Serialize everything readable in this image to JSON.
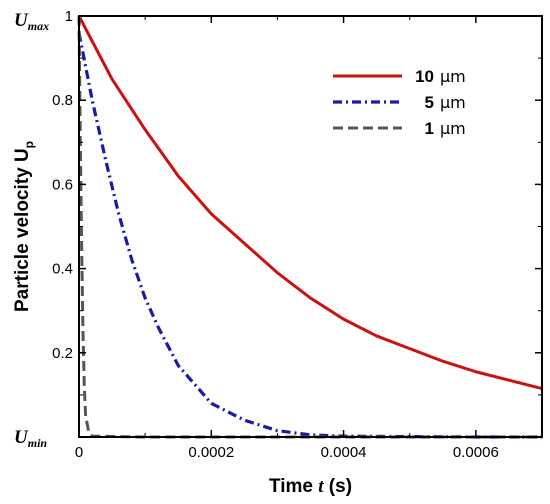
{
  "chart_data": {
    "type": "line",
    "xlabel_prefix": "Time ",
    "xlabel_var": "t",
    "xlabel_suffix": " (s)",
    "ylabel_main": "Particle velocity  U",
    "ylabel_sub": "p",
    "xlim": [
      0,
      0.0007
    ],
    "ylim": [
      0,
      1
    ],
    "x_ticks": [
      "0",
      "0.0002",
      "0.0004",
      "0.0006"
    ],
    "x_tick_values": [
      0,
      0.0002,
      0.0004,
      0.0006
    ],
    "y_ticks": [
      "0.2",
      "0.4",
      "0.6",
      "0.8",
      "1"
    ],
    "y_tick_values": [
      0.2,
      0.4,
      0.6,
      0.8,
      1
    ],
    "y_top_label": {
      "main": "U",
      "sub": "max"
    },
    "y_bottom_label": {
      "main": "U",
      "sub": "min"
    },
    "legend_position": "top-right",
    "series": [
      {
        "name": "10",
        "unit": "μm",
        "color": "#cc1111",
        "style": "solid",
        "x": [
          0,
          5e-05,
          0.0001,
          0.00015,
          0.0002,
          0.00025,
          0.0003,
          0.00035,
          0.0004,
          0.00045,
          0.0005,
          0.00055,
          0.0006,
          0.00065,
          0.0007
        ],
        "y": [
          1.0,
          0.85,
          0.73,
          0.62,
          0.53,
          0.46,
          0.39,
          0.33,
          0.28,
          0.24,
          0.21,
          0.18,
          0.155,
          0.135,
          0.115
        ]
      },
      {
        "name": "5",
        "unit": "μm",
        "color": "#1a1aa6",
        "style": "dashdot",
        "x": [
          0,
          1e-05,
          2e-05,
          4e-05,
          6e-05,
          8e-05,
          0.0001,
          0.00012,
          0.00015,
          0.0002,
          0.00025,
          0.0003,
          0.00035,
          0.0004,
          0.0005,
          0.0006,
          0.0007
        ],
        "y": [
          0.96,
          0.88,
          0.8,
          0.66,
          0.53,
          0.42,
          0.33,
          0.26,
          0.17,
          0.08,
          0.04,
          0.015,
          0.005,
          0.002,
          0.001,
          0.0,
          0.0
        ]
      },
      {
        "name": "1",
        "unit": "μm",
        "color": "#555555",
        "style": "dashed",
        "x": [
          0,
          2e-06,
          4e-06,
          6e-06,
          8e-06,
          1e-05,
          1.5e-05,
          2e-05,
          0.0001,
          0.0007
        ],
        "y": [
          1.0,
          0.7,
          0.45,
          0.25,
          0.12,
          0.05,
          0.01,
          0.002,
          0.0,
          0.0
        ]
      }
    ]
  }
}
